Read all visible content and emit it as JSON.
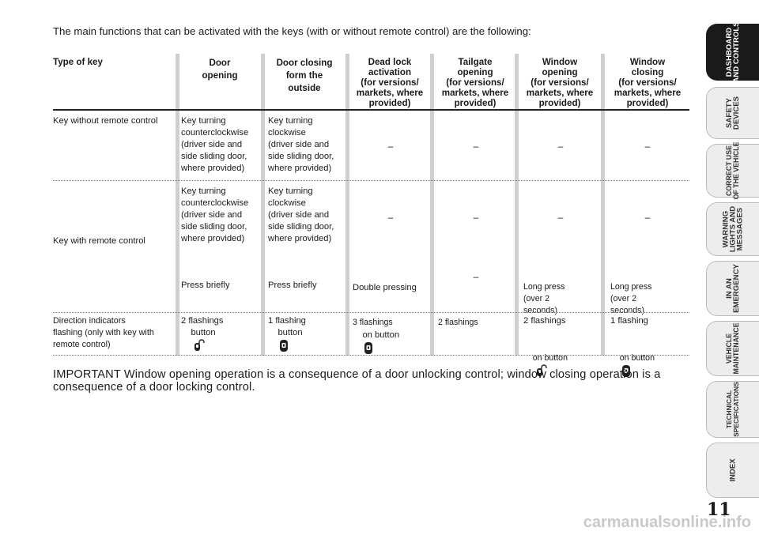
{
  "intro": "The main functions that can be activated with the keys (with or without remote control) are the following:",
  "headers": {
    "type": "Type of key",
    "door_opening": "Door\nopening",
    "door_closing": "Door closing\nform the\noutside",
    "dead_lock": "Dead lock\nactivation\n(for versions/\nmarkets, where\nprovided)",
    "tailgate": "Tailgate\nopening\n(for versions/\nmarkets, where\nprovided)",
    "window_opening": "Window\nopening\n(for versions/\nmarkets, where\nprovided)",
    "window_closing": "Window\nclosing\n(for versions/\nmarkets, where\nprovided)"
  },
  "rows": {
    "no_remote": {
      "label": "Key without remote control",
      "door_opening": "Key turning\ncounterclockwise\n(driver side and\nside sliding door,\nwhere provided)",
      "door_closing": "Key turning\nclockwise\n(driver side and\nside sliding door,\nwhere provided)",
      "dead_lock": "–",
      "tailgate": "–",
      "window_opening": "–",
      "window_closing": "–"
    },
    "with_remote": {
      "label": "Key with remote control",
      "a_door_opening": "Key turning\ncounterclockwise\n(driver side and\nside sliding door,\nwhere provided)",
      "a_door_closing": "Key turning\nclockwise\n(driver side and\nside sliding door,\nwhere provided)",
      "a_dead_lock": "–",
      "a_tailgate": "–",
      "a_window_opening": "–",
      "a_window_closing": "–",
      "b_door_opening_1": "Press briefly",
      "b_door_opening_2": "button",
      "b_door_closing_1": "Press briefly",
      "b_door_closing_2": "button",
      "b_dead_lock_1": "Double pressing",
      "b_dead_lock_2": "on button",
      "b_tailgate": "–",
      "b_window_opening_1": "Long press\n(over 2\nseconds)",
      "b_window_opening_2": "on button",
      "b_window_closing_1": "Long press\n(over 2\nseconds)",
      "b_window_closing_2": "on button"
    },
    "indicators": {
      "label": "Direction indicators\nflashing (only with key with\nremote control)",
      "door_opening": "2 flashings",
      "door_closing": "1 flashing",
      "dead_lock": "3 flashings",
      "tailgate": "2 flashings",
      "window_opening": "2 flashings",
      "window_closing": "1 flashing"
    }
  },
  "important": "IMPORTANT Window opening operation is a consequence of a door unlocking control; window closing operation is a consequence of a door locking control.",
  "tabs": [
    {
      "label": "DASHBOARD\nAND CONTROLS",
      "active": true
    },
    {
      "label": "SAFETY\nDEVICES",
      "active": false
    },
    {
      "label": "CORRECT USE\nOF THE VEHICLE",
      "active": false
    },
    {
      "label": "WARNING\nLIGHTS AND\nMESSAGES",
      "active": false
    },
    {
      "label": "IN AN\nEMERGENCY",
      "active": false
    },
    {
      "label": "VEHICLE\nMAINTENANCE",
      "active": false
    },
    {
      "label": "TECHNICAL\nSPECIFICATIONS",
      "active": false
    },
    {
      "label": "INDEX",
      "active": false
    }
  ],
  "page_number": "11",
  "watermark": "carmanualsonline.info",
  "icons": {
    "unlock": "remote-unlock-icon",
    "lock": "remote-lock-icon"
  }
}
